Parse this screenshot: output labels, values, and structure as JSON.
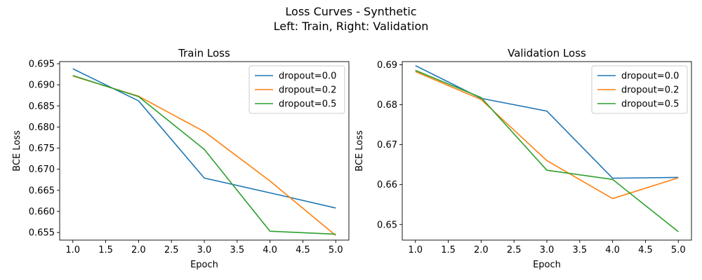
{
  "figure": {
    "title_line1": "Loss Curves - Synthetic",
    "title_line2": "Left: Train, Right: Validation"
  },
  "chart_data": [
    {
      "type": "line",
      "title": "Train Loss",
      "xlabel": "Epoch",
      "ylabel": "BCE Loss",
      "x": [
        1,
        2,
        3,
        4,
        5
      ],
      "xlim": [
        0.8,
        5.2
      ],
      "ylim": [
        0.6532,
        0.6955
      ],
      "xticks": [
        "1.0",
        "1.5",
        "2.0",
        "2.5",
        "3.0",
        "3.5",
        "4.0",
        "4.5",
        "5.0"
      ],
      "yticks": [
        "0.655",
        "0.660",
        "0.665",
        "0.670",
        "0.675",
        "0.680",
        "0.685",
        "0.690",
        "0.695"
      ],
      "grid": false,
      "legend_position": "top-right",
      "series": [
        {
          "name": "dropout=0.0",
          "color": "#1f77b4",
          "values": [
            0.6938,
            0.6862,
            0.6679,
            0.6644,
            0.6608
          ]
        },
        {
          "name": "dropout=0.2",
          "color": "#ff7f0e",
          "values": [
            0.6921,
            0.6873,
            0.6789,
            0.6672,
            0.6543
          ]
        },
        {
          "name": "dropout=0.5",
          "color": "#2ca02c",
          "values": [
            0.6922,
            0.6872,
            0.6747,
            0.6553,
            0.6546
          ]
        }
      ]
    },
    {
      "type": "line",
      "title": "Validation Loss",
      "xlabel": "Epoch",
      "ylabel": "BCE Loss",
      "x": [
        1,
        2,
        3,
        4,
        5
      ],
      "xlim": [
        0.8,
        5.2
      ],
      "ylim": [
        0.6461,
        0.6908
      ],
      "xticks": [
        "1.0",
        "1.5",
        "2.0",
        "2.5",
        "3.0",
        "3.5",
        "4.0",
        "4.5",
        "5.0"
      ],
      "yticks": [
        "0.65",
        "0.66",
        "0.67",
        "0.68",
        "0.69"
      ],
      "grid": false,
      "legend_position": "top-right",
      "series": [
        {
          "name": "dropout=0.0",
          "color": "#1f77b4",
          "values": [
            0.6898,
            0.6816,
            0.6784,
            0.6616,
            0.6618
          ]
        },
        {
          "name": "dropout=0.2",
          "color": "#ff7f0e",
          "values": [
            0.6883,
            0.6813,
            0.666,
            0.6565,
            0.6617
          ]
        },
        {
          "name": "dropout=0.5",
          "color": "#2ca02c",
          "values": [
            0.6886,
            0.6818,
            0.6636,
            0.6613,
            0.6482
          ]
        }
      ]
    }
  ]
}
